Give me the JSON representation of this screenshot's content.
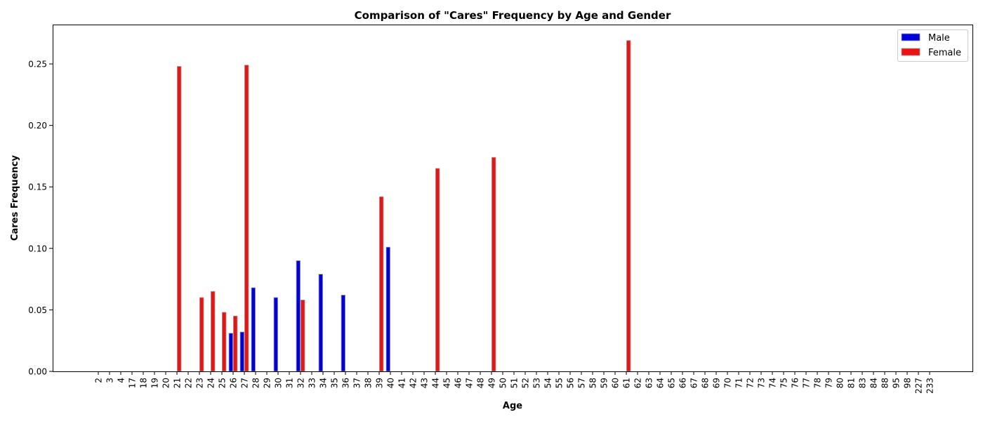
{
  "chart_data": {
    "type": "bar",
    "title": "Comparison of \"Cares\" Frequency by Age and Gender",
    "xlabel": "Age",
    "ylabel": "Cares Frequency",
    "ylim": [
      0,
      0.282
    ],
    "yticks": [
      "0.00",
      "0.05",
      "0.10",
      "0.15",
      "0.20",
      "0.25"
    ],
    "grid": false,
    "legend_position": "top-right",
    "categories": [
      "2",
      "3",
      "4",
      "17",
      "18",
      "19",
      "20",
      "21",
      "22",
      "23",
      "24",
      "25",
      "26",
      "27",
      "28",
      "29",
      "30",
      "31",
      "32",
      "33",
      "34",
      "35",
      "36",
      "37",
      "38",
      "39",
      "40",
      "41",
      "42",
      "43",
      "44",
      "45",
      "46",
      "47",
      "48",
      "49",
      "50",
      "51",
      "52",
      "53",
      "54",
      "55",
      "56",
      "57",
      "58",
      "59",
      "60",
      "61",
      "62",
      "63",
      "64",
      "65",
      "66",
      "67",
      "68",
      "69",
      "70",
      "71",
      "72",
      "73",
      "74",
      "75",
      "76",
      "77",
      "78",
      "79",
      "80",
      "81",
      "83",
      "84",
      "88",
      "95",
      "98",
      "227",
      "233"
    ],
    "series": [
      {
        "name": "Male",
        "color": "#0000dd",
        "values": [
          0,
          0,
          0,
          0,
          0,
          0,
          0,
          0,
          0,
          0,
          0,
          0,
          0.031,
          0.032,
          0.068,
          0,
          0.06,
          0,
          0.09,
          0,
          0.079,
          0,
          0.062,
          0,
          0,
          0,
          0.101,
          0,
          0,
          0,
          0,
          0,
          0,
          0,
          0,
          0,
          0,
          0,
          0,
          0,
          0,
          0,
          0,
          0,
          0,
          0,
          0,
          0,
          0,
          0,
          0,
          0,
          0,
          0,
          0,
          0,
          0,
          0,
          0,
          0,
          0,
          0,
          0,
          0,
          0,
          0,
          0,
          0,
          0,
          0,
          0,
          0,
          0,
          0,
          0
        ]
      },
      {
        "name": "Female",
        "color": "#ee1111",
        "values": [
          0,
          0,
          0,
          0,
          0,
          0,
          0,
          0.248,
          0,
          0.06,
          0.065,
          0.048,
          0.045,
          0.249,
          0,
          0,
          0,
          0,
          0.058,
          0,
          0,
          0,
          0,
          0,
          0,
          0.142,
          0,
          0,
          0,
          0,
          0.165,
          0,
          0,
          0,
          0,
          0.174,
          0,
          0,
          0,
          0,
          0,
          0,
          0,
          0,
          0,
          0,
          0,
          0.269,
          0,
          0,
          0,
          0,
          0,
          0,
          0,
          0,
          0,
          0,
          0,
          0,
          0,
          0,
          0,
          0,
          0,
          0,
          0,
          0,
          0,
          0,
          0,
          0,
          0,
          0,
          0
        ]
      }
    ]
  }
}
